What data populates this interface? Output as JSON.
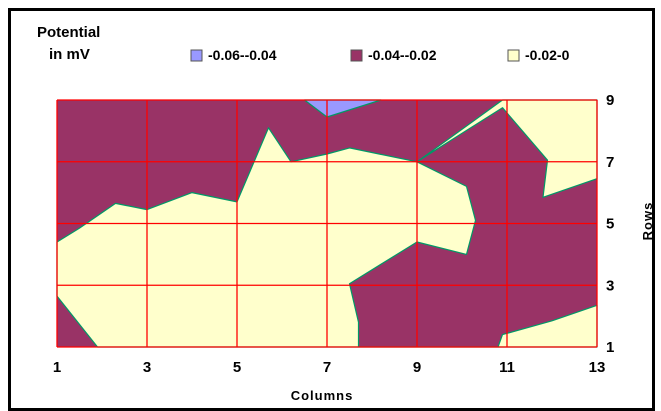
{
  "chart_data": {
    "type": "area",
    "subtype": "contour",
    "title_line1": "Potential",
    "title_line2": "in mV",
    "xlabel": "Columns",
    "ylabel": "Rows",
    "xlim": [
      1,
      13
    ],
    "ylim": [
      1,
      9
    ],
    "x_ticks": [
      "1",
      "3",
      "5",
      "7",
      "9",
      "11",
      "13"
    ],
    "y_ticks": [
      "1",
      "3",
      "5",
      "7",
      "9"
    ],
    "grid": true,
    "legend_position": "top",
    "colors": {
      "band_low": "#9999ff",
      "band_mid": "#993366",
      "band_high": "#ffffcc",
      "gridlines": "#ff0000",
      "contour_lines": "#009966",
      "background": "#ffffff"
    },
    "series": [
      {
        "name": "-0.06--0.04",
        "range": [
          -0.06,
          -0.04
        ],
        "color": "#9999ff",
        "polygons": [
          [
            [
              6.5,
              9
            ],
            [
              8.2,
              9
            ],
            [
              7,
              8.45
            ]
          ]
        ]
      },
      {
        "name": "-0.04--0.02",
        "range": [
          -0.04,
          -0.02
        ],
        "color": "#993366",
        "polygons": [
          [
            [
              1,
              1
            ],
            [
              13,
              1
            ],
            [
              13,
              9
            ],
            [
              1,
              9
            ]
          ]
        ]
      },
      {
        "name": "-0.02-0",
        "range": [
          -0.02,
          0
        ],
        "color": "#ffffcc",
        "polygons": [
          [
            [
              1,
              4.4
            ],
            [
              1.5,
              4.85
            ],
            [
              2.3,
              5.65
            ],
            [
              3,
              5.45
            ],
            [
              4,
              6.0
            ],
            [
              5,
              5.7
            ],
            [
              5.7,
              8.1
            ],
            [
              6.2,
              7.0
            ],
            [
              7,
              7.25
            ],
            [
              7.5,
              7.45
            ],
            [
              9,
              7.0
            ],
            [
              10.1,
              6.2
            ],
            [
              10.3,
              5.1
            ],
            [
              10.1,
              4.0
            ],
            [
              9,
              4.4
            ],
            [
              7.5,
              3.05
            ],
            [
              7.7,
              1.8
            ],
            [
              7.7,
              1
            ],
            [
              10.8,
              1
            ],
            [
              10.9,
              1.4
            ],
            [
              12,
              1.85
            ],
            [
              13,
              2.35
            ],
            [
              13,
              1
            ],
            [
              1.9,
              1
            ],
            [
              1,
              2.65
            ]
          ],
          [
            [
              9,
              7.0
            ],
            [
              10.9,
              8.75
            ],
            [
              11.9,
              7.05
            ],
            [
              11.8,
              5.85
            ],
            [
              13,
              6.45
            ],
            [
              13,
              9
            ],
            [
              10.9,
              9
            ]
          ]
        ]
      }
    ]
  }
}
